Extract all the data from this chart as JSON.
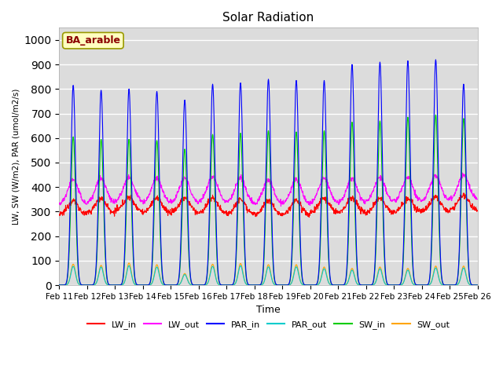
{
  "title": "Solar Radiation",
  "xlabel": "Time",
  "ylabel": "LW, SW (W/m2), PAR (umol/m2/s)",
  "annotation": "BA_arable",
  "annotation_color": "#8B0000",
  "annotation_bg": "#FFFFC0",
  "ylim": [
    0,
    1050
  ],
  "n_days": 15,
  "date_start": 11,
  "series": {
    "LW_in": {
      "color": "#FF0000",
      "lw": 0.8
    },
    "LW_out": {
      "color": "#FF00FF",
      "lw": 0.8
    },
    "PAR_in": {
      "color": "#0000FF",
      "lw": 0.8
    },
    "PAR_out": {
      "color": "#00CCCC",
      "lw": 0.8
    },
    "SW_in": {
      "color": "#00CC00",
      "lw": 0.8
    },
    "SW_out": {
      "color": "#FFA500",
      "lw": 0.8
    }
  },
  "par_in_peaks": [
    815,
    795,
    800,
    790,
    755,
    820,
    825,
    840,
    835,
    835,
    900,
    910,
    915,
    920,
    820
  ],
  "sw_in_peaks": [
    605,
    595,
    595,
    590,
    555,
    615,
    620,
    630,
    625,
    630,
    665,
    670,
    685,
    695,
    680
  ],
  "sw_out_peaks": [
    90,
    85,
    95,
    88,
    50,
    90,
    93,
    88,
    88,
    78,
    72,
    78,
    72,
    82,
    82
  ],
  "par_out_peaks": [
    85,
    82,
    88,
    82,
    48,
    85,
    88,
    83,
    83,
    74,
    68,
    74,
    68,
    78,
    78
  ],
  "lw_in_base": [
    285,
    295,
    300,
    295,
    295,
    295,
    290,
    285,
    285,
    295,
    295,
    295,
    295,
    300,
    305
  ],
  "lw_out_base": [
    330,
    335,
    340,
    335,
    335,
    340,
    335,
    330,
    330,
    335,
    335,
    340,
    340,
    345,
    350
  ],
  "bg_color": "#DCDCDC",
  "grid_color": "#FFFFFF",
  "fig_bg": "#FFFFFF",
  "pts_per_hour": 4
}
